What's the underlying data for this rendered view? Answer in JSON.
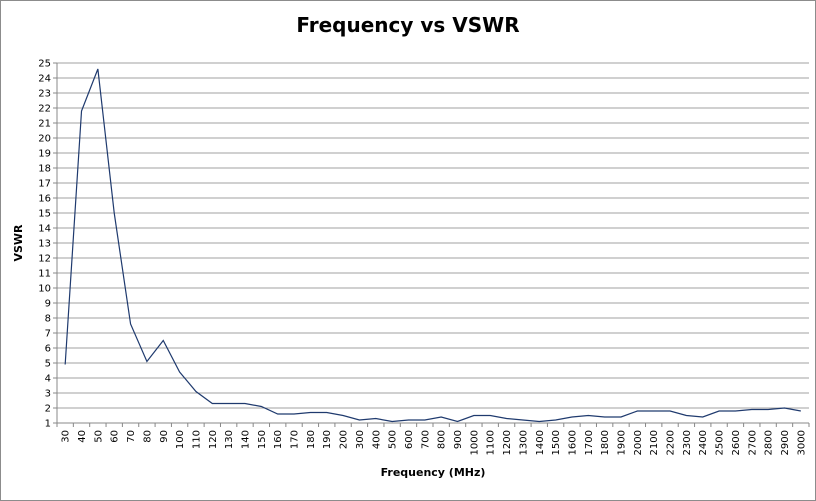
{
  "chart_data": {
    "type": "line",
    "title": "Frequency vs VSWR",
    "xlabel": "Frequency (MHz)",
    "ylabel": "VSWR",
    "ylim": [
      1,
      25
    ],
    "grid": true,
    "categories": [
      "30",
      "40",
      "50",
      "60",
      "70",
      "80",
      "90",
      "100",
      "110",
      "120",
      "130",
      "140",
      "150",
      "160",
      "170",
      "180",
      "190",
      "200",
      "300",
      "400",
      "500",
      "600",
      "700",
      "800",
      "900",
      "1000",
      "1100",
      "1200",
      "1300",
      "1400",
      "1500",
      "1600",
      "1700",
      "1800",
      "1900",
      "2000",
      "2100",
      "2200",
      "2300",
      "2400",
      "2500",
      "2600",
      "2700",
      "2800",
      "2900",
      "3000"
    ],
    "series": [
      {
        "color": "#1f3a6e",
        "values": [
          4.9,
          21.8,
          24.6,
          15.0,
          7.6,
          5.1,
          6.5,
          4.4,
          3.1,
          2.3,
          2.3,
          2.3,
          2.1,
          1.6,
          1.6,
          1.7,
          1.7,
          1.5,
          1.2,
          1.3,
          1.1,
          1.2,
          1.2,
          1.4,
          1.1,
          1.5,
          1.5,
          1.3,
          1.2,
          1.1,
          1.2,
          1.4,
          1.5,
          1.4,
          1.4,
          1.8,
          1.8,
          1.8,
          1.5,
          1.4,
          1.8,
          1.8,
          1.9,
          1.9,
          2.0,
          1.8
        ]
      }
    ]
  }
}
